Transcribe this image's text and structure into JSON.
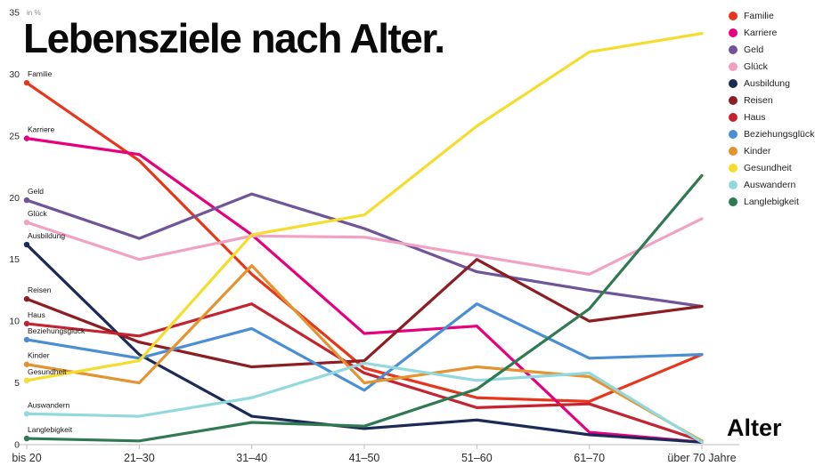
{
  "title": "Lebensziele nach Alter.",
  "x_axis_label": "Alter",
  "y_axis_unit": "in %",
  "chart_data": {
    "type": "line",
    "categories": [
      "bis 20",
      "21–30",
      "31–40",
      "41–50",
      "51–60",
      "61–70",
      "über 70 Jahre"
    ],
    "ylim": [
      0,
      35
    ],
    "yticks": [
      0,
      5,
      10,
      15,
      20,
      25,
      30,
      35
    ],
    "grid": false,
    "legend_position": "top-right",
    "series": [
      {
        "name": "Familie",
        "color": "#e6371c",
        "values": [
          29.3,
          23.0,
          13.8,
          6.2,
          3.8,
          3.5,
          7.3
        ]
      },
      {
        "name": "Karriere",
        "color": "#e6007e",
        "values": [
          24.8,
          23.5,
          17.0,
          9.0,
          9.6,
          1.0,
          0.2
        ]
      },
      {
        "name": "Geld",
        "color": "#6f5499",
        "values": [
          19.8,
          16.7,
          20.3,
          17.5,
          14.0,
          12.5,
          11.2
        ]
      },
      {
        "name": "Glück",
        "color": "#f1a2c3",
        "values": [
          18.0,
          15.0,
          16.9,
          16.8,
          15.3,
          13.8,
          18.3
        ]
      },
      {
        "name": "Ausbildung",
        "color": "#1b2a57",
        "values": [
          16.2,
          7.3,
          2.3,
          1.3,
          2.0,
          0.8,
          0.2
        ]
      },
      {
        "name": "Reisen",
        "color": "#8c1d22",
        "values": [
          11.8,
          8.3,
          6.3,
          6.8,
          15.0,
          10.0,
          11.2
        ]
      },
      {
        "name": "Haus",
        "color": "#c42430",
        "values": [
          9.8,
          8.8,
          11.4,
          5.8,
          3.0,
          3.3,
          0.3
        ]
      },
      {
        "name": "Beziehungsglück",
        "color": "#4a8fd3",
        "values": [
          8.5,
          7.0,
          9.4,
          4.4,
          11.4,
          7.0,
          7.3
        ]
      },
      {
        "name": "Kinder",
        "color": "#e3932f",
        "values": [
          6.5,
          5.0,
          14.5,
          5.0,
          6.3,
          5.5,
          0.3
        ]
      },
      {
        "name": "Gesundheit",
        "color": "#f5dd2e",
        "values": [
          5.2,
          6.8,
          17.0,
          18.6,
          25.8,
          31.8,
          33.3
        ]
      },
      {
        "name": "Auswandern",
        "color": "#92d9de",
        "values": [
          2.5,
          2.3,
          3.8,
          6.6,
          5.2,
          5.8,
          0.2
        ]
      },
      {
        "name": "Langlebigkeit",
        "color": "#2f7a52",
        "values": [
          0.5,
          0.3,
          1.8,
          1.5,
          4.5,
          11.0,
          21.8
        ]
      }
    ]
  }
}
